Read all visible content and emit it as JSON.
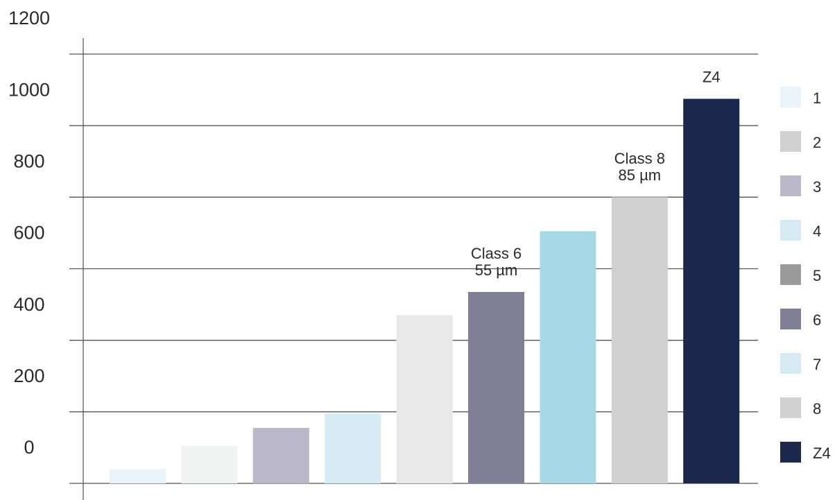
{
  "chart_data": {
    "type": "bar",
    "categories": [
      "1",
      "2",
      "3",
      "4",
      "5",
      "6",
      "7",
      "8",
      "Z4"
    ],
    "values": [
      40,
      105,
      155,
      195,
      470,
      535,
      705,
      800,
      1075
    ],
    "colors": [
      "#e8f4fa",
      "#f1f3f3",
      "#bab8c8",
      "#d4ebf3",
      "#e8e8e8",
      "#7f7e96",
      "#a6d9e6",
      "#d0d0d0",
      "#1b284b"
    ],
    "legend_colors": [
      "#e8f4fa",
      "#d0d0d0",
      "#bab8c8",
      "#d4ebf3",
      "#9b9b9b",
      "#7f7e96",
      "#d4ebf3",
      "#d0d0d0",
      "#1b284b"
    ],
    "ylim": [
      0,
      1200
    ],
    "yticks": [
      0,
      200,
      400,
      600,
      800,
      1000,
      1200
    ],
    "grid": true,
    "legend": "right",
    "annotations": [
      {
        "category": "6",
        "text": [
          "Class 6",
          "55 µm"
        ]
      },
      {
        "category": "8",
        "text": [
          "Class 8",
          "85 µm"
        ]
      },
      {
        "category": "Z4",
        "text": [
          "Z4"
        ]
      }
    ]
  }
}
